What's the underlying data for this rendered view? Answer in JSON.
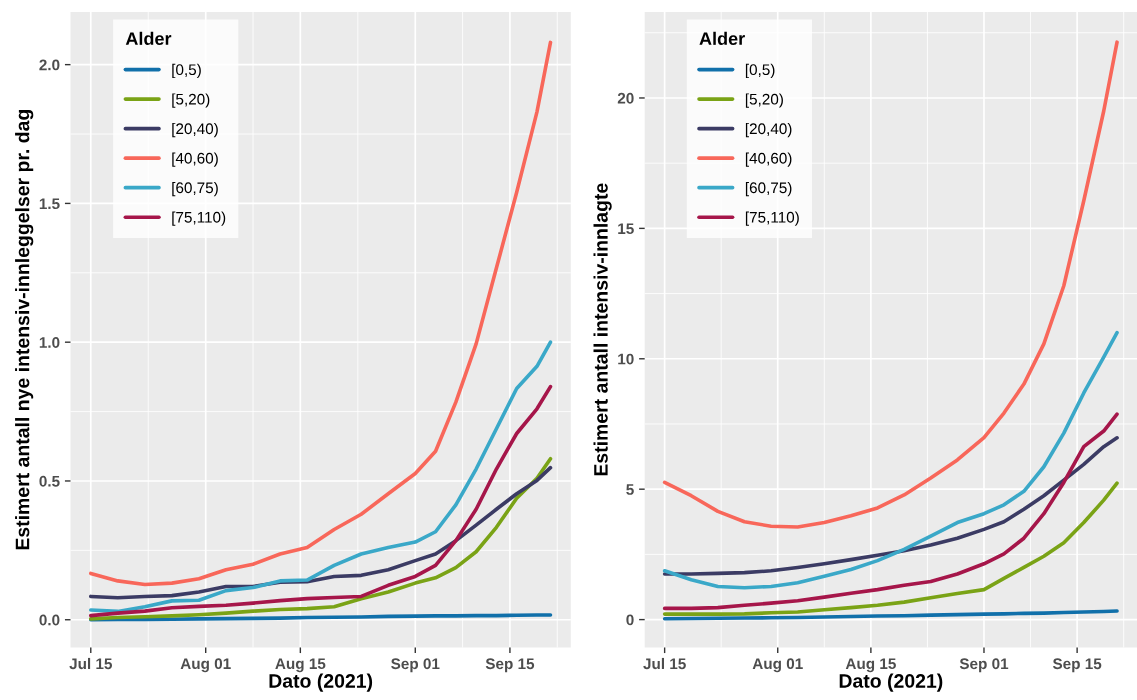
{
  "chart_data": [
    {
      "type": "line",
      "xlabel": "Dato (2021)",
      "ylabel": "Estimert antall nye intensiv-innleggelser pr. dag",
      "legend_title": "Alder",
      "legend": "top left",
      "grid": true,
      "x": [
        "2021-07-15",
        "2021-07-19",
        "2021-07-23",
        "2021-07-27",
        "2021-07-31",
        "2021-08-04",
        "2021-08-08",
        "2021-08-12",
        "2021-08-16",
        "2021-08-20",
        "2021-08-24",
        "2021-08-28",
        "2021-09-01",
        "2021-09-04",
        "2021-09-07",
        "2021-09-10",
        "2021-09-13",
        "2021-09-16",
        "2021-09-19",
        "2021-09-21"
      ],
      "xlim": [
        "2021-07-12",
        "2021-09-24"
      ],
      "xticks": [
        {
          "value": "2021-07-15",
          "label": "Jul 15"
        },
        {
          "value": "2021-08-01",
          "label": "Aug 01"
        },
        {
          "value": "2021-08-15",
          "label": "Aug 15"
        },
        {
          "value": "2021-09-01",
          "label": "Sep 01"
        },
        {
          "value": "2021-09-15",
          "label": "Sep 15"
        }
      ],
      "ylim": [
        -0.1,
        2.19
      ],
      "yticks": [
        {
          "value": 0,
          "label": "0.0"
        },
        {
          "value": 0.5,
          "label": "0.5"
        },
        {
          "value": 1,
          "label": "1.0"
        },
        {
          "value": 1.5,
          "label": "1.5"
        },
        {
          "value": 2,
          "label": "2.0"
        }
      ],
      "series": [
        {
          "name": "[0,5)",
          "color": "#1170aa",
          "values": [
            0.0,
            0.001,
            0.001,
            0.002,
            0.003,
            0.004,
            0.005,
            0.006,
            0.008,
            0.009,
            0.01,
            0.012,
            0.013,
            0.014,
            0.014,
            0.015,
            0.015,
            0.016,
            0.017,
            0.017
          ]
        },
        {
          "name": "[5,20)",
          "color": "#7aa316",
          "values": [
            0.003,
            0.008,
            0.011,
            0.014,
            0.018,
            0.024,
            0.031,
            0.037,
            0.04,
            0.047,
            0.076,
            0.1,
            0.132,
            0.151,
            0.188,
            0.245,
            0.333,
            0.438,
            0.51,
            0.58
          ]
        },
        {
          "name": "[20,40)",
          "color": "#3b3b64",
          "values": [
            0.084,
            0.079,
            0.084,
            0.087,
            0.1,
            0.12,
            0.12,
            0.135,
            0.137,
            0.156,
            0.16,
            0.18,
            0.213,
            0.237,
            0.285,
            0.341,
            0.398,
            0.454,
            0.502,
            0.548
          ]
        },
        {
          "name": "[40,60)",
          "color": "#f8675a",
          "values": [
            0.167,
            0.14,
            0.127,
            0.132,
            0.148,
            0.18,
            0.2,
            0.237,
            0.26,
            0.325,
            0.38,
            0.454,
            0.527,
            0.607,
            0.784,
            0.994,
            1.267,
            1.54,
            1.83,
            2.08
          ]
        },
        {
          "name": "[60,75)",
          "color": "#3aa8c8",
          "values": [
            0.035,
            0.03,
            0.047,
            0.068,
            0.07,
            0.105,
            0.116,
            0.14,
            0.143,
            0.196,
            0.237,
            0.26,
            0.28,
            0.317,
            0.414,
            0.543,
            0.688,
            0.833,
            0.913,
            1.0
          ]
        },
        {
          "name": "[75,110)",
          "color": "#a6164a",
          "values": [
            0.015,
            0.024,
            0.031,
            0.043,
            0.048,
            0.052,
            0.06,
            0.069,
            0.076,
            0.08,
            0.084,
            0.124,
            0.156,
            0.196,
            0.285,
            0.398,
            0.543,
            0.671,
            0.76,
            0.84
          ]
        }
      ]
    },
    {
      "type": "line",
      "xlabel": "Dato (2021)",
      "ylabel": "Estimert antall intensiv-innlagte",
      "legend_title": "Alder",
      "legend": "top left",
      "grid": true,
      "x": [
        "2021-07-15",
        "2021-07-19",
        "2021-07-23",
        "2021-07-27",
        "2021-07-31",
        "2021-08-04",
        "2021-08-08",
        "2021-08-12",
        "2021-08-16",
        "2021-08-20",
        "2021-08-24",
        "2021-08-28",
        "2021-09-01",
        "2021-09-04",
        "2021-09-07",
        "2021-09-10",
        "2021-09-13",
        "2021-09-16",
        "2021-09-19",
        "2021-09-21"
      ],
      "xlim": [
        "2021-07-12",
        "2021-09-24"
      ],
      "xticks": [
        {
          "value": "2021-07-15",
          "label": "Jul 15"
        },
        {
          "value": "2021-08-01",
          "label": "Aug 01"
        },
        {
          "value": "2021-08-15",
          "label": "Aug 15"
        },
        {
          "value": "2021-09-01",
          "label": "Sep 01"
        },
        {
          "value": "2021-09-15",
          "label": "Sep 15"
        }
      ],
      "ylim": [
        -1.07,
        23.3
      ],
      "yticks": [
        0,
        5,
        10,
        15,
        20
      ],
      "series": [
        {
          "name": "[0,5)",
          "color": "#1170aa",
          "values": [
            0.03,
            0.04,
            0.05,
            0.06,
            0.07,
            0.08,
            0.1,
            0.12,
            0.14,
            0.15,
            0.17,
            0.19,
            0.21,
            0.22,
            0.24,
            0.25,
            0.27,
            0.29,
            0.31,
            0.33
          ]
        },
        {
          "name": "[5,20)",
          "color": "#7aa316",
          "values": [
            0.21,
            0.21,
            0.21,
            0.22,
            0.26,
            0.29,
            0.38,
            0.46,
            0.55,
            0.67,
            0.84,
            1.0,
            1.15,
            1.58,
            2.0,
            2.43,
            2.95,
            3.72,
            4.58,
            5.23
          ]
        },
        {
          "name": "[20,40)",
          "color": "#3b3b64",
          "values": [
            1.75,
            1.75,
            1.77,
            1.8,
            1.87,
            2.0,
            2.14,
            2.3,
            2.47,
            2.64,
            2.86,
            3.12,
            3.46,
            3.75,
            4.23,
            4.75,
            5.35,
            5.95,
            6.63,
            6.97
          ]
        },
        {
          "name": "[40,60)",
          "color": "#f8675a",
          "values": [
            5.26,
            4.75,
            4.15,
            3.75,
            3.58,
            3.55,
            3.72,
            3.98,
            4.28,
            4.78,
            5.43,
            6.12,
            6.98,
            7.92,
            9.03,
            10.57,
            12.8,
            16.06,
            19.5,
            22.14
          ]
        },
        {
          "name": "[60,75)",
          "color": "#3aa8c8",
          "values": [
            1.87,
            1.53,
            1.27,
            1.22,
            1.27,
            1.41,
            1.66,
            1.92,
            2.26,
            2.69,
            3.2,
            3.72,
            4.06,
            4.4,
            4.92,
            5.86,
            7.15,
            8.69,
            10.06,
            11.0
          ]
        },
        {
          "name": "[75,110)",
          "color": "#a6164a",
          "values": [
            0.43,
            0.43,
            0.46,
            0.55,
            0.63,
            0.72,
            0.86,
            1.01,
            1.15,
            1.32,
            1.46,
            1.75,
            2.14,
            2.52,
            3.12,
            4.06,
            5.26,
            6.63,
            7.23,
            7.88
          ]
        }
      ]
    }
  ]
}
